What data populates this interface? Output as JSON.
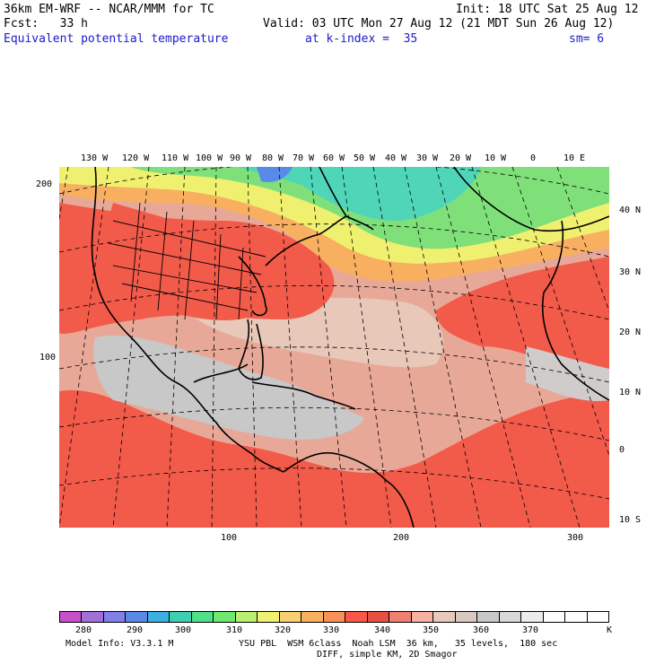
{
  "header": {
    "model": "36km EM-WRF -- NCAR/MMM for TC",
    "init": "Init: 18 UTC Sat 25 Aug 12",
    "fcst": "Fcst:   33 h",
    "valid": "Valid: 03 UTC Mon 27 Aug 12 (21 MDT Sun 26 Aug 12)",
    "field": "Equivalent potential temperature",
    "level": "at k-index =  35",
    "smooth": "sm= 6"
  },
  "colors": {
    "text_blue": "#1a1acd",
    "ocean_warm": "#e88a78",
    "ocean_hot": "#f25a4a",
    "tropics_grey": "#c8c8c8",
    "cool_green": "#7fe07a",
    "cold_teal": "#4fd6b8"
  },
  "axes": {
    "left_y_ticks": [
      "200",
      "100"
    ],
    "bottom_x_ticks": [
      "100",
      "200",
      "300"
    ],
    "right_lat_labels": [
      "40 N",
      "30 N",
      "20 N",
      "10 N",
      "0",
      "10 S"
    ],
    "top_lon_labels": [
      "130 W",
      "120 W",
      "110 W",
      "100 W",
      "90 W",
      "80 W",
      "70 W",
      "60 W",
      "50 W",
      "40 W",
      "30 W",
      "20 W",
      "10 W",
      "0",
      "10 E"
    ]
  },
  "legend": {
    "colors": [
      "#c850c8",
      "#a070d8",
      "#8080e8",
      "#5a8ae8",
      "#3cb0e0",
      "#3cd0b0",
      "#50e088",
      "#70e870",
      "#b8f070",
      "#f0f070",
      "#f8d070",
      "#f8b060",
      "#f89058",
      "#f85848",
      "#e85040",
      "#f08070",
      "#f8b0a0",
      "#e8c8b8",
      "#d8c8c0",
      "#c8c8c8",
      "#d8d8d8",
      "#ececec",
      "#ffffff",
      "#ffffff",
      "#ffffff"
    ],
    "labels": [
      "280",
      "290",
      "300",
      "310",
      "320",
      "330",
      "340",
      "350",
      "360",
      "370",
      "K"
    ]
  },
  "footer": {
    "line1_left": "Model Info: V3.3.1 M",
    "line1_right": "YSU PBL  WSM 6class  Noah LSM  36 km,   35 levels,  180 sec",
    "line2": "DIFF, simple KM, 2D Smagor"
  }
}
